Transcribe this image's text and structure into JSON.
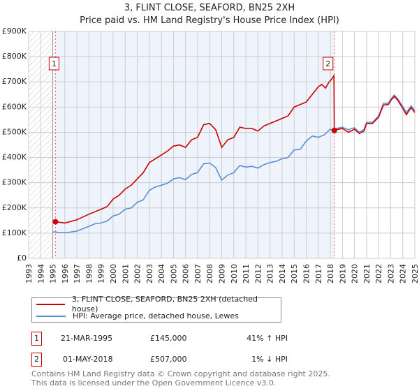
{
  "title": "3, FLINT CLOSE, SEAFORD, BN25 2XH",
  "subtitle": "Price paid vs. HM Land Registry's House Price Index (HPI)",
  "chart_data": {
    "type": "line",
    "title": "3, FLINT CLOSE, SEAFORD, BN25 2XH",
    "subtitle": "Price paid vs. HM Land Registry's House Price Index (HPI)",
    "xlim": [
      1993,
      2025
    ],
    "ylim": [
      0,
      900000
    ],
    "x_ticks": [
      "1993",
      "1994",
      "1995",
      "1996",
      "1997",
      "1998",
      "1999",
      "2000",
      "2001",
      "2002",
      "2003",
      "2004",
      "2005",
      "2006",
      "2007",
      "2008",
      "2009",
      "2010",
      "2011",
      "2012",
      "2013",
      "2014",
      "2015",
      "2016",
      "2017",
      "2018",
      "2019",
      "2020",
      "2021",
      "2022",
      "2023",
      "2024",
      "2025"
    ],
    "y_ticks": [
      {
        "v": 0,
        "label": "£0"
      },
      {
        "v": 100000,
        "label": "£100K"
      },
      {
        "v": 200000,
        "label": "£200K"
      },
      {
        "v": 300000,
        "label": "£300K"
      },
      {
        "v": 400000,
        "label": "£400K"
      },
      {
        "v": 500000,
        "label": "£500K"
      },
      {
        "v": 600000,
        "label": "£600K"
      },
      {
        "v": 700000,
        "label": "£700K"
      },
      {
        "v": 800000,
        "label": "£800K"
      },
      {
        "v": 900000,
        "label": "£900K"
      }
    ],
    "grid": true,
    "legend_position": "below",
    "series": [
      {
        "name": "3, FLINT CLOSE, SEAFORD, BN25 2XH (detached house)",
        "color": "#cc0000",
        "points": [
          [
            1995.22,
            145
          ],
          [
            1996,
            140
          ],
          [
            1997,
            153
          ],
          [
            1998,
            175
          ],
          [
            1999,
            195
          ],
          [
            1999.5,
            205
          ],
          [
            2000,
            235
          ],
          [
            2000.5,
            250
          ],
          [
            2001,
            275
          ],
          [
            2001.5,
            290
          ],
          [
            2002,
            315
          ],
          [
            2002.5,
            340
          ],
          [
            2003,
            380
          ],
          [
            2003.5,
            395
          ],
          [
            2004,
            410
          ],
          [
            2004.5,
            425
          ],
          [
            2005,
            445
          ],
          [
            2005.5,
            450
          ],
          [
            2006,
            440
          ],
          [
            2006.5,
            470
          ],
          [
            2007,
            480
          ],
          [
            2007.5,
            530
          ],
          [
            2008,
            535
          ],
          [
            2008.5,
            510
          ],
          [
            2009,
            440
          ],
          [
            2009.5,
            470
          ],
          [
            2010,
            480
          ],
          [
            2010.5,
            520
          ],
          [
            2011,
            515
          ],
          [
            2011.5,
            515
          ],
          [
            2012,
            505
          ],
          [
            2012.5,
            525
          ],
          [
            2013,
            535
          ],
          [
            2013.5,
            545
          ],
          [
            2014,
            555
          ],
          [
            2014.5,
            565
          ],
          [
            2015,
            600
          ],
          [
            2015.5,
            610
          ],
          [
            2016,
            620
          ],
          [
            2016.5,
            650
          ],
          [
            2017,
            680
          ],
          [
            2017.3,
            690
          ],
          [
            2017.6,
            675
          ],
          [
            2017.9,
            700
          ],
          [
            2018.1,
            710
          ],
          [
            2018.3,
            725
          ],
          [
            2018.33,
            507
          ],
          [
            2018.5,
            510
          ],
          [
            2019,
            515
          ],
          [
            2019.5,
            500
          ],
          [
            2020,
            512
          ],
          [
            2020.4,
            495
          ],
          [
            2020.8,
            505
          ],
          [
            2021,
            535
          ],
          [
            2021.5,
            535
          ],
          [
            2022,
            560
          ],
          [
            2022.4,
            608
          ],
          [
            2022.8,
            610
          ],
          [
            2023,
            625
          ],
          [
            2023.3,
            642
          ],
          [
            2023.6,
            626
          ],
          [
            2024,
            595
          ],
          [
            2024.3,
            570
          ],
          [
            2024.7,
            598
          ],
          [
            2025,
            578
          ]
        ]
      },
      {
        "name": "HPI: Average price, detached house, Lewes",
        "color": "#5b8fd4",
        "points": [
          [
            1995,
            105
          ],
          [
            1996,
            101
          ],
          [
            1997,
            108
          ],
          [
            1998,
            127
          ],
          [
            1998.5,
            137
          ],
          [
            1999,
            140
          ],
          [
            1999.5,
            148
          ],
          [
            2000,
            168
          ],
          [
            2000.5,
            175
          ],
          [
            2001,
            195
          ],
          [
            2001.5,
            200
          ],
          [
            2002,
            222
          ],
          [
            2002.5,
            232
          ],
          [
            2003,
            270
          ],
          [
            2003.5,
            283
          ],
          [
            2004,
            290
          ],
          [
            2004.5,
            298
          ],
          [
            2005,
            315
          ],
          [
            2005.5,
            320
          ],
          [
            2006,
            312
          ],
          [
            2006.5,
            333
          ],
          [
            2007,
            340
          ],
          [
            2007.5,
            375
          ],
          [
            2008,
            378
          ],
          [
            2008.5,
            360
          ],
          [
            2009,
            310
          ],
          [
            2009.5,
            330
          ],
          [
            2010,
            340
          ],
          [
            2010.5,
            368
          ],
          [
            2011,
            362
          ],
          [
            2011.5,
            365
          ],
          [
            2012,
            358
          ],
          [
            2012.5,
            372
          ],
          [
            2013,
            380
          ],
          [
            2013.5,
            385
          ],
          [
            2014,
            395
          ],
          [
            2014.5,
            400
          ],
          [
            2015,
            430
          ],
          [
            2015.5,
            432
          ],
          [
            2016,
            465
          ],
          [
            2016.5,
            485
          ],
          [
            2017,
            480
          ],
          [
            2017.5,
            490
          ],
          [
            2018,
            512
          ],
          [
            2018.3,
            505
          ],
          [
            2018.5,
            515
          ],
          [
            2019,
            520
          ],
          [
            2019.5,
            510
          ],
          [
            2020,
            518
          ],
          [
            2020.4,
            500
          ],
          [
            2020.8,
            512
          ],
          [
            2021,
            540
          ],
          [
            2021.5,
            540
          ],
          [
            2022,
            565
          ],
          [
            2022.4,
            615
          ],
          [
            2022.8,
            615
          ],
          [
            2023,
            630
          ],
          [
            2023.3,
            648
          ],
          [
            2023.6,
            632
          ],
          [
            2024,
            602
          ],
          [
            2024.3,
            578
          ],
          [
            2024.7,
            605
          ],
          [
            2025,
            585
          ]
        ]
      }
    ],
    "y_units": "thousands GBP",
    "annotations": [
      {
        "label": "1",
        "x": 1995.22,
        "y": 145
      },
      {
        "label": "2",
        "x": 2018.33,
        "y": 507
      }
    ]
  },
  "legend": {
    "items": [
      {
        "label": "3, FLINT CLOSE, SEAFORD, BN25 2XH (detached house)",
        "color": "#cc0000"
      },
      {
        "label": "HPI: Average price, detached house, Lewes",
        "color": "#5b8fd4"
      }
    ]
  },
  "transactions": [
    {
      "num": "1",
      "date": "21-MAR-1995",
      "price": "£145,000",
      "hpi": "41% ↑ HPI"
    },
    {
      "num": "2",
      "date": "01-MAY-2018",
      "price": "£507,000",
      "hpi": "1% ↓ HPI"
    }
  ],
  "footer": {
    "line1": "Contains HM Land Registry data © Crown copyright and database right 2025.",
    "line2": "This data is licensed under the Open Government Licence v3.0."
  }
}
